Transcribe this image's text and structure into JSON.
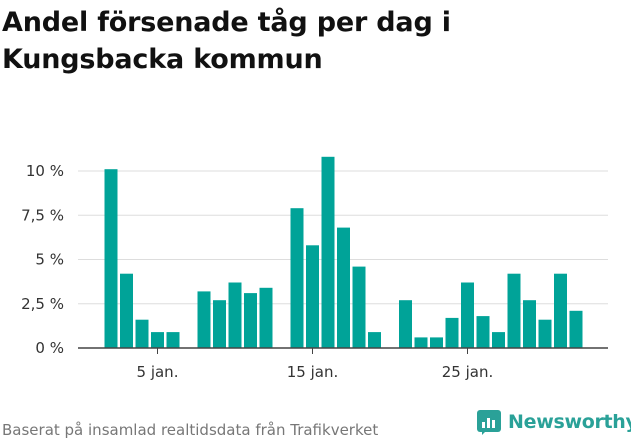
{
  "title": "Andel försenade tåg per dag i Kungsbacka kommun",
  "footer": "Baserat på insamlad realtidsdata från Trafikverket",
  "brand": {
    "name": "Newsworthy",
    "color": "#2aa198"
  },
  "colors": {
    "bar": "#00a398",
    "grid": "#dddddd",
    "axis": "#444444"
  },
  "chart_data": {
    "type": "bar",
    "title": "Andel försenade tåg per dag i Kungsbacka kommun",
    "xlabel": "",
    "ylabel": "",
    "ylim": [
      0,
      11
    ],
    "grid": true,
    "y_ticks": [
      {
        "value": 0,
        "label": "0 %"
      },
      {
        "value": 2.5,
        "label": "2,5 %"
      },
      {
        "value": 5,
        "label": "5 %"
      },
      {
        "value": 7.5,
        "label": "7,5 %"
      },
      {
        "value": 10,
        "label": "10 %"
      }
    ],
    "x_ticks": [
      {
        "day": 5,
        "label": "5 jan."
      },
      {
        "day": 15,
        "label": "15 jan."
      },
      {
        "day": 25,
        "label": "25 jan."
      }
    ],
    "categories": [
      "2 jan.",
      "3 jan.",
      "4 jan.",
      "5 jan.",
      "6 jan.",
      "7 jan.",
      "8 jan.",
      "9 jan.",
      "10 jan.",
      "11 jan.",
      "12 jan.",
      "13 jan.",
      "14 jan.",
      "15 jan.",
      "16 jan.",
      "17 jan.",
      "18 jan.",
      "19 jan.",
      "20 jan.",
      "21 jan.",
      "22 jan.",
      "23 jan.",
      "24 jan.",
      "25 jan.",
      "26 jan.",
      "27 jan.",
      "28 jan.",
      "29 jan.",
      "30 jan.",
      "31 jan.",
      "1 feb."
    ],
    "days": [
      2,
      3,
      4,
      5,
      6,
      7,
      8,
      9,
      10,
      11,
      12,
      13,
      14,
      15,
      16,
      17,
      18,
      19,
      20,
      21,
      22,
      23,
      24,
      25,
      26,
      27,
      28,
      29,
      30,
      31,
      32
    ],
    "values": [
      10.1,
      4.2,
      1.6,
      0.9,
      0.9,
      null,
      3.2,
      2.7,
      3.7,
      3.1,
      3.4,
      null,
      7.9,
      5.8,
      10.8,
      6.8,
      4.6,
      0.9,
      null,
      2.7,
      0.6,
      0.6,
      1.7,
      3.7,
      1.8,
      0.9,
      4.2,
      2.7,
      1.6,
      4.2,
      2.1
    ]
  }
}
